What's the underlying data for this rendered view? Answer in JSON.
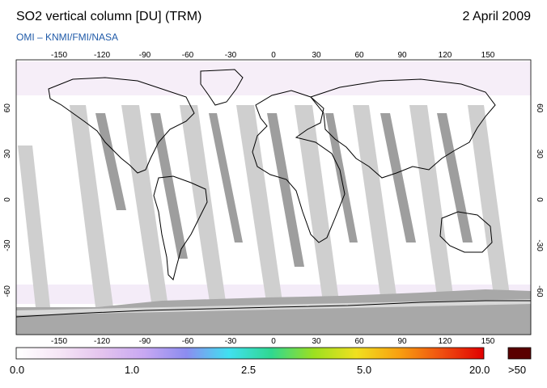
{
  "header": {
    "title": "SO2 vertical column [DU] (TRM)",
    "date": "2 April 2009",
    "credit": "OMI – KNMI/FMI/NASA"
  },
  "map": {
    "lon_ticks": [
      "-150",
      "-120",
      "-90",
      "-60",
      "-30",
      "0",
      "30",
      "60",
      "90",
      "120",
      "150"
    ],
    "lat_ticks": [
      "60",
      "30",
      "0",
      "-30",
      "-60"
    ]
  },
  "colorbar": {
    "labels": [
      "0.0",
      "1.0",
      "2.5",
      "5.0",
      "20.0"
    ],
    "overflow_label": ">50",
    "colors": [
      "#ffffff",
      "#f6e6f6",
      "#e4c4ee",
      "#c8a8f2",
      "#8c8cf0",
      "#40e0f0",
      "#30d890",
      "#9ce020",
      "#f0e020",
      "#f8a010",
      "#f05010",
      "#e00000"
    ],
    "overflow_color": "#5a0000"
  }
}
